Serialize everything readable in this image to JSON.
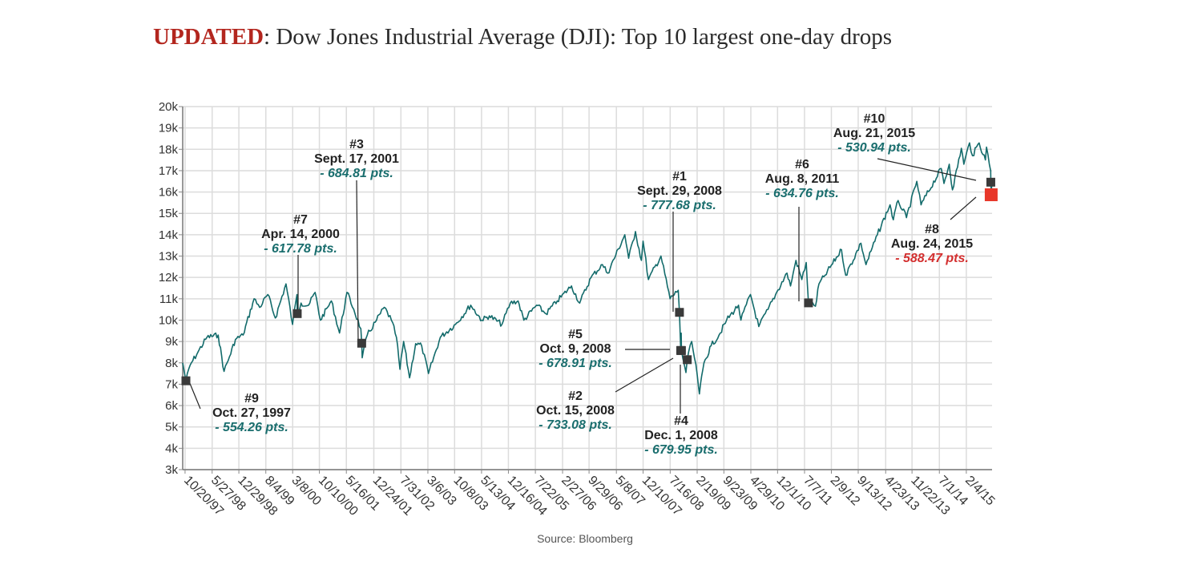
{
  "header": {
    "title_prefix": "UPDATED",
    "title_rest": ": Dow Jones Industrial Average (DJI): Top 10 largest one-day drops"
  },
  "source": "Source: Bloomberg",
  "colors": {
    "line": "#136b6b",
    "marker": "#3a3a3a",
    "highlight": "#e8372a",
    "grid": "#dcdcdc",
    "points_text": "#1a6e6e",
    "points_text_highlight": "#d32f2f"
  },
  "chart_data": {
    "type": "line",
    "title": "",
    "xlabel": "",
    "ylabel": "",
    "x_range": [
      "1997-10-01",
      "2015-08-31"
    ],
    "ylim": [
      3000,
      20000
    ],
    "grid": true,
    "y_ticks": [
      {
        "value": 3000,
        "label": "3k"
      },
      {
        "value": 4000,
        "label": "4k"
      },
      {
        "value": 5000,
        "label": "5k"
      },
      {
        "value": 6000,
        "label": "6k"
      },
      {
        "value": 7000,
        "label": "7k"
      },
      {
        "value": 8000,
        "label": "8k"
      },
      {
        "value": 9000,
        "label": "9k"
      },
      {
        "value": 10000,
        "label": "10k"
      },
      {
        "value": 11000,
        "label": "11k"
      },
      {
        "value": 12000,
        "label": "12k"
      },
      {
        "value": 13000,
        "label": "13k"
      },
      {
        "value": 14000,
        "label": "14k"
      },
      {
        "value": 15000,
        "label": "15k"
      },
      {
        "value": 16000,
        "label": "16k"
      },
      {
        "value": 17000,
        "label": "17k"
      },
      {
        "value": 18000,
        "label": "18k"
      },
      {
        "value": 19000,
        "label": "19k"
      },
      {
        "value": 20000,
        "label": "20k"
      }
    ],
    "x_ticks": [
      {
        "date": "1997-10-20",
        "label": "10/20/97"
      },
      {
        "date": "1998-05-27",
        "label": "5/27/98"
      },
      {
        "date": "1998-12-29",
        "label": "12/29/98"
      },
      {
        "date": "1999-08-04",
        "label": "8/4/99"
      },
      {
        "date": "2000-03-08",
        "label": "3/8/00"
      },
      {
        "date": "2000-10-10",
        "label": "10/10/00"
      },
      {
        "date": "2001-05-16",
        "label": "5/16/01"
      },
      {
        "date": "2001-12-24",
        "label": "12/24/01"
      },
      {
        "date": "2002-07-31",
        "label": "7/31/02"
      },
      {
        "date": "2003-03-06",
        "label": "3/6/03"
      },
      {
        "date": "2003-10-08",
        "label": "10/8/03"
      },
      {
        "date": "2004-05-13",
        "label": "5/13/04"
      },
      {
        "date": "2004-12-16",
        "label": "12/16/04"
      },
      {
        "date": "2005-07-22",
        "label": "7/22/05"
      },
      {
        "date": "2006-02-27",
        "label": "2/27/06"
      },
      {
        "date": "2006-09-29",
        "label": "9/29/06"
      },
      {
        "date": "2007-05-08",
        "label": "5/8/07"
      },
      {
        "date": "2007-12-10",
        "label": "12/10/07"
      },
      {
        "date": "2008-07-16",
        "label": "7/16/08"
      },
      {
        "date": "2009-02-19",
        "label": "2/19/09"
      },
      {
        "date": "2009-09-23",
        "label": "9/23/09"
      },
      {
        "date": "2010-04-29",
        "label": "4/29/10"
      },
      {
        "date": "2010-12-01",
        "label": "12/1/10"
      },
      {
        "date": "2011-07-07",
        "label": "7/7/11"
      },
      {
        "date": "2012-02-09",
        "label": "2/9/12"
      },
      {
        "date": "2012-09-13",
        "label": "9/13/12"
      },
      {
        "date": "2013-04-23",
        "label": "4/23/13"
      },
      {
        "date": "2013-11-22",
        "label": "11/22/13"
      },
      {
        "date": "2014-07-01",
        "label": "7/1/14"
      },
      {
        "date": "2015-02-04",
        "label": "2/4/15"
      }
    ],
    "series": [
      {
        "points": [
          [
            "1997-10-01",
            8000
          ],
          [
            "1997-10-27",
            7161
          ],
          [
            "1997-12-01",
            7900
          ],
          [
            "1998-02-01",
            8500
          ],
          [
            "1998-04-15",
            9200
          ],
          [
            "1998-07-15",
            9300
          ],
          [
            "1998-08-31",
            7600
          ],
          [
            "1998-10-15",
            8300
          ],
          [
            "1998-12-01",
            9100
          ],
          [
            "1999-02-01",
            9300
          ],
          [
            "1999-05-01",
            11000
          ],
          [
            "1999-06-15",
            10600
          ],
          [
            "1999-08-20",
            11200
          ],
          [
            "1999-10-20",
            10100
          ],
          [
            "2000-01-14",
            11700
          ],
          [
            "2000-03-07",
            9800
          ],
          [
            "2000-04-12",
            11200
          ],
          [
            "2000-04-14",
            10300
          ],
          [
            "2000-05-15",
            10800
          ],
          [
            "2000-07-15",
            10700
          ],
          [
            "2000-09-05",
            11300
          ],
          [
            "2000-10-18",
            10000
          ],
          [
            "2000-12-15",
            10600
          ],
          [
            "2001-01-15",
            10900
          ],
          [
            "2001-03-22",
            9400
          ],
          [
            "2001-05-21",
            11300
          ],
          [
            "2001-07-15",
            10500
          ],
          [
            "2001-09-10",
            9600
          ],
          [
            "2001-09-17",
            8920
          ],
          [
            "2001-09-21",
            8240
          ],
          [
            "2001-11-01",
            9300
          ],
          [
            "2002-01-15",
            10000
          ],
          [
            "2002-03-19",
            10600
          ],
          [
            "2002-05-15",
            10000
          ],
          [
            "2002-06-25",
            9200
          ],
          [
            "2002-07-23",
            7700
          ],
          [
            "2002-08-22",
            9000
          ],
          [
            "2002-10-09",
            7300
          ],
          [
            "2002-11-27",
            8900
          ],
          [
            "2003-01-15",
            8800
          ],
          [
            "2003-03-11",
            7500
          ],
          [
            "2003-06-15",
            9200
          ],
          [
            "2003-10-15",
            9800
          ],
          [
            "2004-02-15",
            10700
          ],
          [
            "2004-05-15",
            10000
          ],
          [
            "2004-07-15",
            10200
          ],
          [
            "2004-10-25",
            9800
          ],
          [
            "2004-12-31",
            10800
          ],
          [
            "2005-03-04",
            10900
          ],
          [
            "2005-04-20",
            10000
          ],
          [
            "2005-08-01",
            10700
          ],
          [
            "2005-10-15",
            10300
          ],
          [
            "2006-01-15",
            10900
          ],
          [
            "2006-05-10",
            11600
          ],
          [
            "2006-07-15",
            10800
          ],
          [
            "2006-10-15",
            12000
          ],
          [
            "2007-01-15",
            12600
          ],
          [
            "2007-02-27",
            12200
          ],
          [
            "2007-07-15",
            14000
          ],
          [
            "2007-08-15",
            12900
          ],
          [
            "2007-10-09",
            14150
          ],
          [
            "2007-11-26",
            12800
          ],
          [
            "2007-12-10",
            13700
          ],
          [
            "2008-01-22",
            11900
          ],
          [
            "2008-05-02",
            13000
          ],
          [
            "2008-07-15",
            11000
          ],
          [
            "2008-09-19",
            11400
          ],
          [
            "2008-09-29",
            10365
          ],
          [
            "2008-10-09",
            8579
          ],
          [
            "2008-10-10",
            8450
          ],
          [
            "2008-10-13",
            9390
          ],
          [
            "2008-10-15",
            8578
          ],
          [
            "2008-11-20",
            7550
          ],
          [
            "2008-12-01",
            8149
          ],
          [
            "2009-01-06",
            9000
          ],
          [
            "2009-02-20",
            7400
          ],
          [
            "2009-03-09",
            6547
          ],
          [
            "2009-04-15",
            8000
          ],
          [
            "2009-06-12",
            8800
          ],
          [
            "2009-08-15",
            9300
          ],
          [
            "2009-10-15",
            10000
          ],
          [
            "2010-01-19",
            10700
          ],
          [
            "2010-02-08",
            10000
          ],
          [
            "2010-04-26",
            11200
          ],
          [
            "2010-07-02",
            9700
          ],
          [
            "2010-09-15",
            10500
          ],
          [
            "2010-11-15",
            11200
          ],
          [
            "2011-02-15",
            12200
          ],
          [
            "2011-03-16",
            11600
          ],
          [
            "2011-04-29",
            12800
          ],
          [
            "2011-06-15",
            11900
          ],
          [
            "2011-07-21",
            12700
          ],
          [
            "2011-08-08",
            10810
          ],
          [
            "2011-10-03",
            10650
          ],
          [
            "2011-11-01",
            11700
          ],
          [
            "2011-12-20",
            12100
          ],
          [
            "2012-05-01",
            13300
          ],
          [
            "2012-06-04",
            12100
          ],
          [
            "2012-10-05",
            13600
          ],
          [
            "2012-11-15",
            12600
          ],
          [
            "2013-02-15",
            14000
          ],
          [
            "2013-05-28",
            15400
          ],
          [
            "2013-06-24",
            14700
          ],
          [
            "2013-08-02",
            15600
          ],
          [
            "2013-10-08",
            14800
          ],
          [
            "2013-12-31",
            16500
          ],
          [
            "2014-02-03",
            15400
          ],
          [
            "2014-07-16",
            17100
          ],
          [
            "2014-08-07",
            16400
          ],
          [
            "2014-09-19",
            17300
          ],
          [
            "2014-10-15",
            16100
          ],
          [
            "2014-12-26",
            18050
          ],
          [
            "2015-01-15",
            17300
          ],
          [
            "2015-03-02",
            18300
          ],
          [
            "2015-03-26",
            17700
          ],
          [
            "2015-05-19",
            18300
          ],
          [
            "2015-07-08",
            17500
          ],
          [
            "2015-07-17",
            18100
          ],
          [
            "2015-08-20",
            16990
          ],
          [
            "2015-08-21",
            16460
          ],
          [
            "2015-08-24",
            15871
          ],
          [
            "2015-08-31",
            16528
          ]
        ]
      }
    ],
    "annotations": [
      {
        "rank": "#1",
        "date_label": "Sept. 29, 2008",
        "points": "- 777.68 pts.",
        "date": "2008-09-29",
        "value": 10365,
        "highlight": false
      },
      {
        "rank": "#2",
        "date_label": "Oct. 15, 2008",
        "points": "- 733.08 pts.",
        "date": "2008-10-15",
        "value": 8578,
        "highlight": false
      },
      {
        "rank": "#3",
        "date_label": "Sept. 17, 2001",
        "points": "- 684.81 pts.",
        "date": "2001-09-17",
        "value": 8920,
        "highlight": false
      },
      {
        "rank": "#4",
        "date_label": "Dec. 1, 2008",
        "points": "- 679.95 pts.",
        "date": "2008-12-01",
        "value": 8149,
        "highlight": false
      },
      {
        "rank": "#5",
        "date_label": "Oct. 9, 2008",
        "points": "- 678.91 pts.",
        "date": "2008-10-09",
        "value": 8579,
        "highlight": false
      },
      {
        "rank": "#6",
        "date_label": "Aug. 8, 2011",
        "points": "- 634.76 pts.",
        "date": "2011-08-08",
        "value": 10810,
        "highlight": false
      },
      {
        "rank": "#7",
        "date_label": "Apr. 14, 2000",
        "points": "- 617.78 pts.",
        "date": "2000-04-14",
        "value": 10306,
        "highlight": false
      },
      {
        "rank": "#8",
        "date_label": "Aug. 24, 2015",
        "points": "- 588.47 pts.",
        "date": "2015-08-24",
        "value": 15871,
        "highlight": true
      },
      {
        "rank": "#9",
        "date_label": "Oct. 27, 1997",
        "points": "- 554.26 pts.",
        "date": "1997-10-27",
        "value": 7161,
        "highlight": false
      },
      {
        "rank": "#10",
        "date_label": "Aug. 21, 2015",
        "points": "- 530.94 pts.",
        "date": "2015-08-21",
        "value": 16460,
        "highlight": false
      }
    ]
  }
}
